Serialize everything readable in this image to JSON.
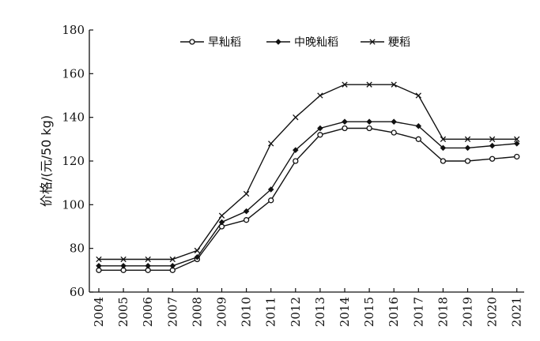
{
  "chart_data": {
    "type": "line",
    "title": "",
    "xlabel": "",
    "ylabel": "价格/(元/50 kg)",
    "ylim": [
      60,
      180
    ],
    "yticks": [
      60,
      80,
      100,
      120,
      140,
      160,
      180
    ],
    "grid": false,
    "legend_position": "top-center",
    "categories": [
      "2004",
      "2005",
      "2006",
      "2007",
      "2008",
      "2009",
      "2010",
      "2011",
      "2012",
      "2013",
      "2014",
      "2015",
      "2016",
      "2017",
      "2018",
      "2019",
      "2020",
      "2021"
    ],
    "series": [
      {
        "name": "早籼稻",
        "marker": "circle",
        "values": [
          70,
          70,
          70,
          70,
          75,
          90,
          93,
          102,
          120,
          132,
          135,
          135,
          133,
          130,
          120,
          120,
          121,
          122
        ]
      },
      {
        "name": "中晚籼稻",
        "marker": "diamond",
        "values": [
          72,
          72,
          72,
          72,
          76,
          92,
          97,
          107,
          125,
          135,
          138,
          138,
          138,
          136,
          126,
          126,
          127,
          128
        ]
      },
      {
        "name": "粳稻",
        "marker": "x",
        "values": [
          75,
          75,
          75,
          75,
          79,
          95,
          105,
          128,
          140,
          150,
          155,
          155,
          155,
          150,
          130,
          130,
          130,
          130
        ]
      }
    ]
  }
}
